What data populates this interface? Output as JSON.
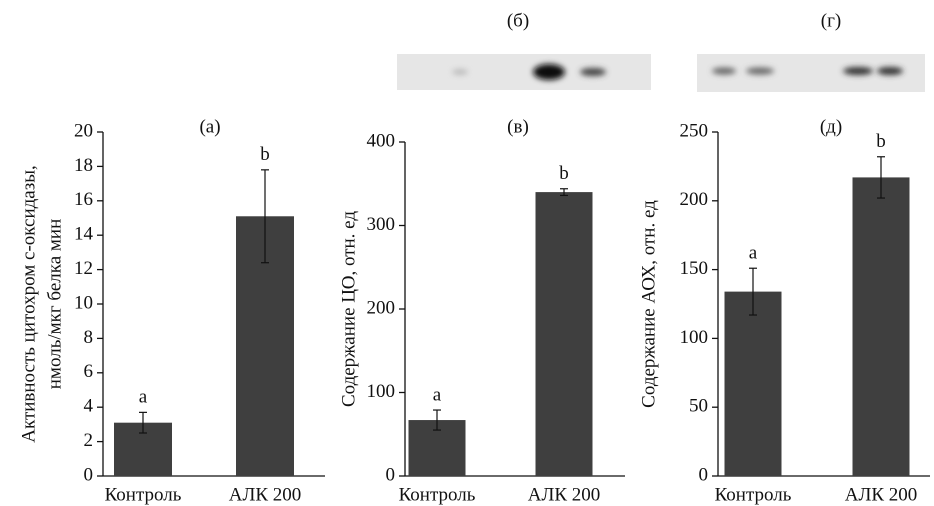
{
  "chart_data": [
    {
      "type": "bar",
      "title": "(а)",
      "ylabel": [
        "Активность цитохром c-оксидазы,",
        "нмоль/мкг белка мин"
      ],
      "categories": [
        "Контроль",
        "АЛК 200"
      ],
      "values": [
        3.1,
        15.1
      ],
      "errors": [
        0.6,
        2.7
      ],
      "letters": [
        "a",
        "b"
      ],
      "color": "#3f3f3f",
      "ylim": [
        0,
        20
      ],
      "yticks": [
        0,
        2,
        4,
        6,
        8,
        10,
        12,
        14,
        16,
        18,
        20
      ]
    },
    {
      "type": "bar",
      "title": "(в)",
      "blot_title": "(б)",
      "ylabel": [
        "Содержание ЦО, отн. ед"
      ],
      "categories": [
        "Контроль",
        "АЛК 200"
      ],
      "values": [
        67,
        340
      ],
      "errors": [
        12,
        4
      ],
      "letters": [
        "a",
        "b"
      ],
      "color": "#3f3f3f",
      "ylim": [
        0,
        400
      ],
      "yticks": [
        0,
        100,
        200,
        300,
        400
      ]
    },
    {
      "type": "bar",
      "title": "(д)",
      "blot_title": "(г)",
      "ylabel": [
        "Содержание АОХ, отн. ед"
      ],
      "categories": [
        "Контроль",
        "АЛК 200"
      ],
      "values": [
        134,
        217
      ],
      "errors": [
        17,
        15
      ],
      "letters": [
        "a",
        "b"
      ],
      "color": "#3f3f3f",
      "ylim": [
        0,
        250
      ],
      "yticks": [
        0,
        50,
        100,
        150,
        200,
        250
      ]
    }
  ]
}
